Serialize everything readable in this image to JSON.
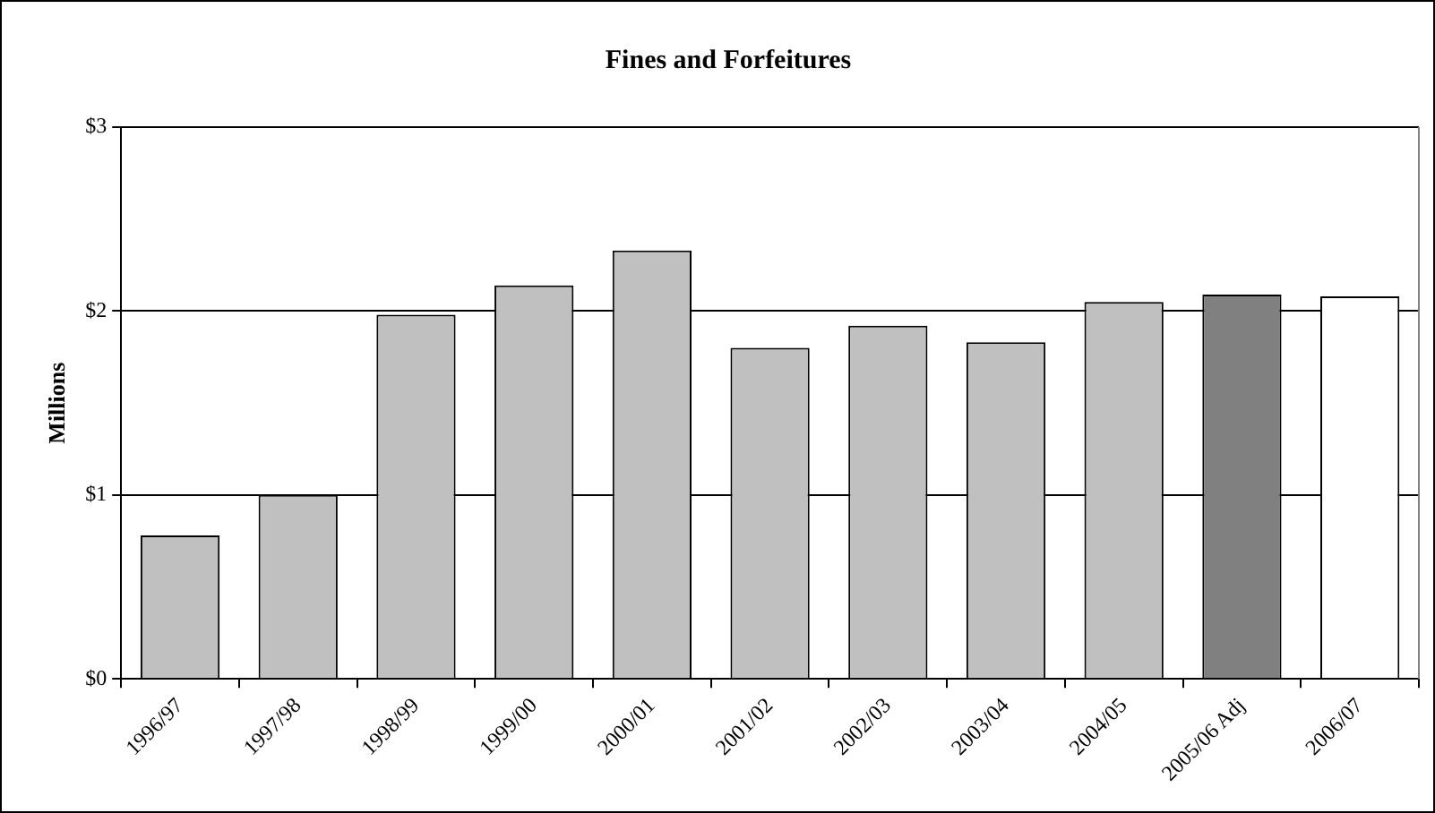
{
  "chart_data": {
    "type": "bar",
    "title": "Fines and Forfeitures",
    "ylabel": "Millions",
    "categories": [
      "1996/97",
      "1997/98",
      "1998/99",
      "1999/00",
      "2000/01",
      "2001/02",
      "2002/03",
      "2003/04",
      "2004/05",
      "2005/06 Adj",
      "2006/07"
    ],
    "values": [
      0.78,
      1.0,
      1.98,
      2.14,
      2.33,
      1.8,
      1.92,
      1.83,
      2.05,
      2.09,
      2.08
    ],
    "colors": [
      "#c0c0c0",
      "#c0c0c0",
      "#c0c0c0",
      "#c0c0c0",
      "#c0c0c0",
      "#c0c0c0",
      "#c0c0c0",
      "#c0c0c0",
      "#c0c0c0",
      "#808080",
      "#ffffff"
    ],
    "ylim": [
      0,
      3
    ],
    "yticks": [
      {
        "value": 0,
        "label": "$0"
      },
      {
        "value": 1,
        "label": "$1"
      },
      {
        "value": 2,
        "label": "$2"
      },
      {
        "value": 3,
        "label": "$3"
      }
    ],
    "grid": "y",
    "legend": false
  }
}
